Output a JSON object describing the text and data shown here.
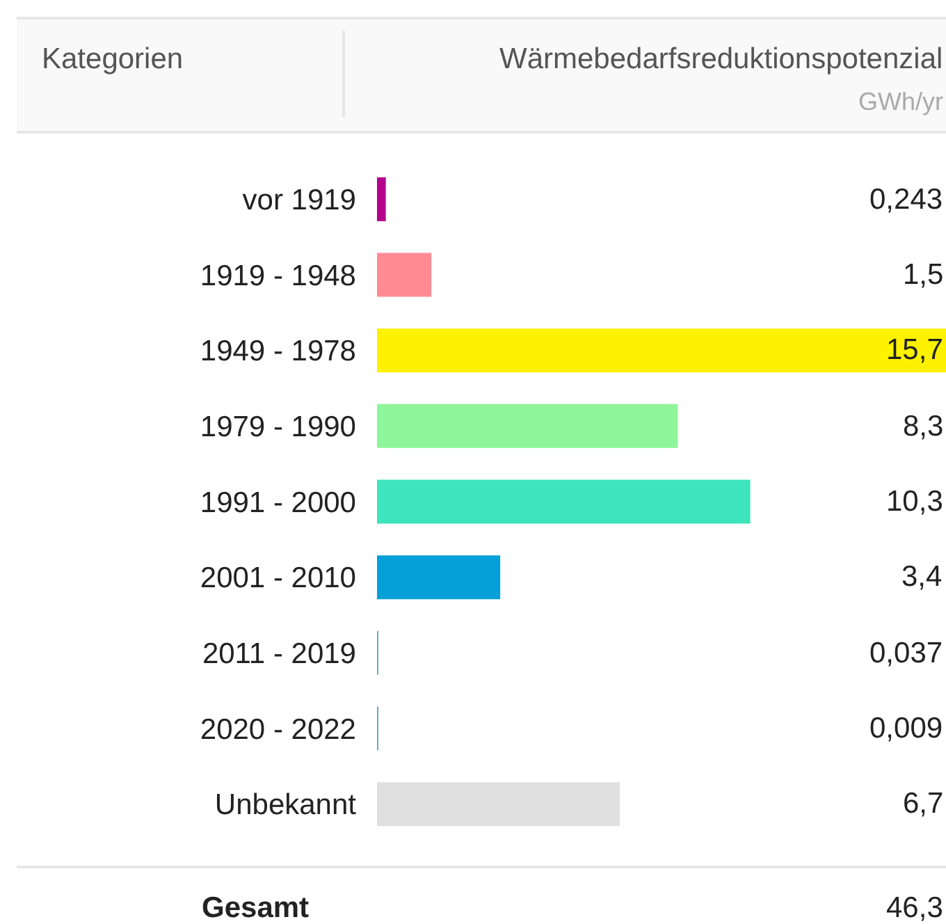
{
  "chart_data": {
    "type": "bar",
    "orientation": "horizontal",
    "title": "Wärmebedarfsreduktionspotenzial",
    "subtitle": "GWh/yr",
    "ylabel": "Kategorien",
    "categories": [
      "vor 1919",
      "1919 - 1948",
      "1949 - 1978",
      "1979 - 1990",
      "1991 - 2000",
      "2001 - 2010",
      "2011 - 2019",
      "2020 - 2022",
      "Unbekannt"
    ],
    "values": [
      0.243,
      1.5,
      15.7,
      8.3,
      10.3,
      3.4,
      0.037,
      0.009,
      6.7
    ],
    "value_labels": [
      "0,243",
      "1,5",
      "15,7",
      "8,3",
      "10,3",
      "3,4",
      "0,037",
      "0,009",
      "6,7"
    ],
    "colors": [
      "#b5008e",
      "#ff8a94",
      "#fff200",
      "#8ef59a",
      "#3de4bc",
      "#05a0d8",
      "#6aa8c8",
      "#6aa8c8",
      "#e0e0e0"
    ],
    "xlim": [
      0,
      15.7
    ],
    "tick_labels": "y",
    "annotations": [
      "Gesamt",
      "46,3"
    ]
  }
}
